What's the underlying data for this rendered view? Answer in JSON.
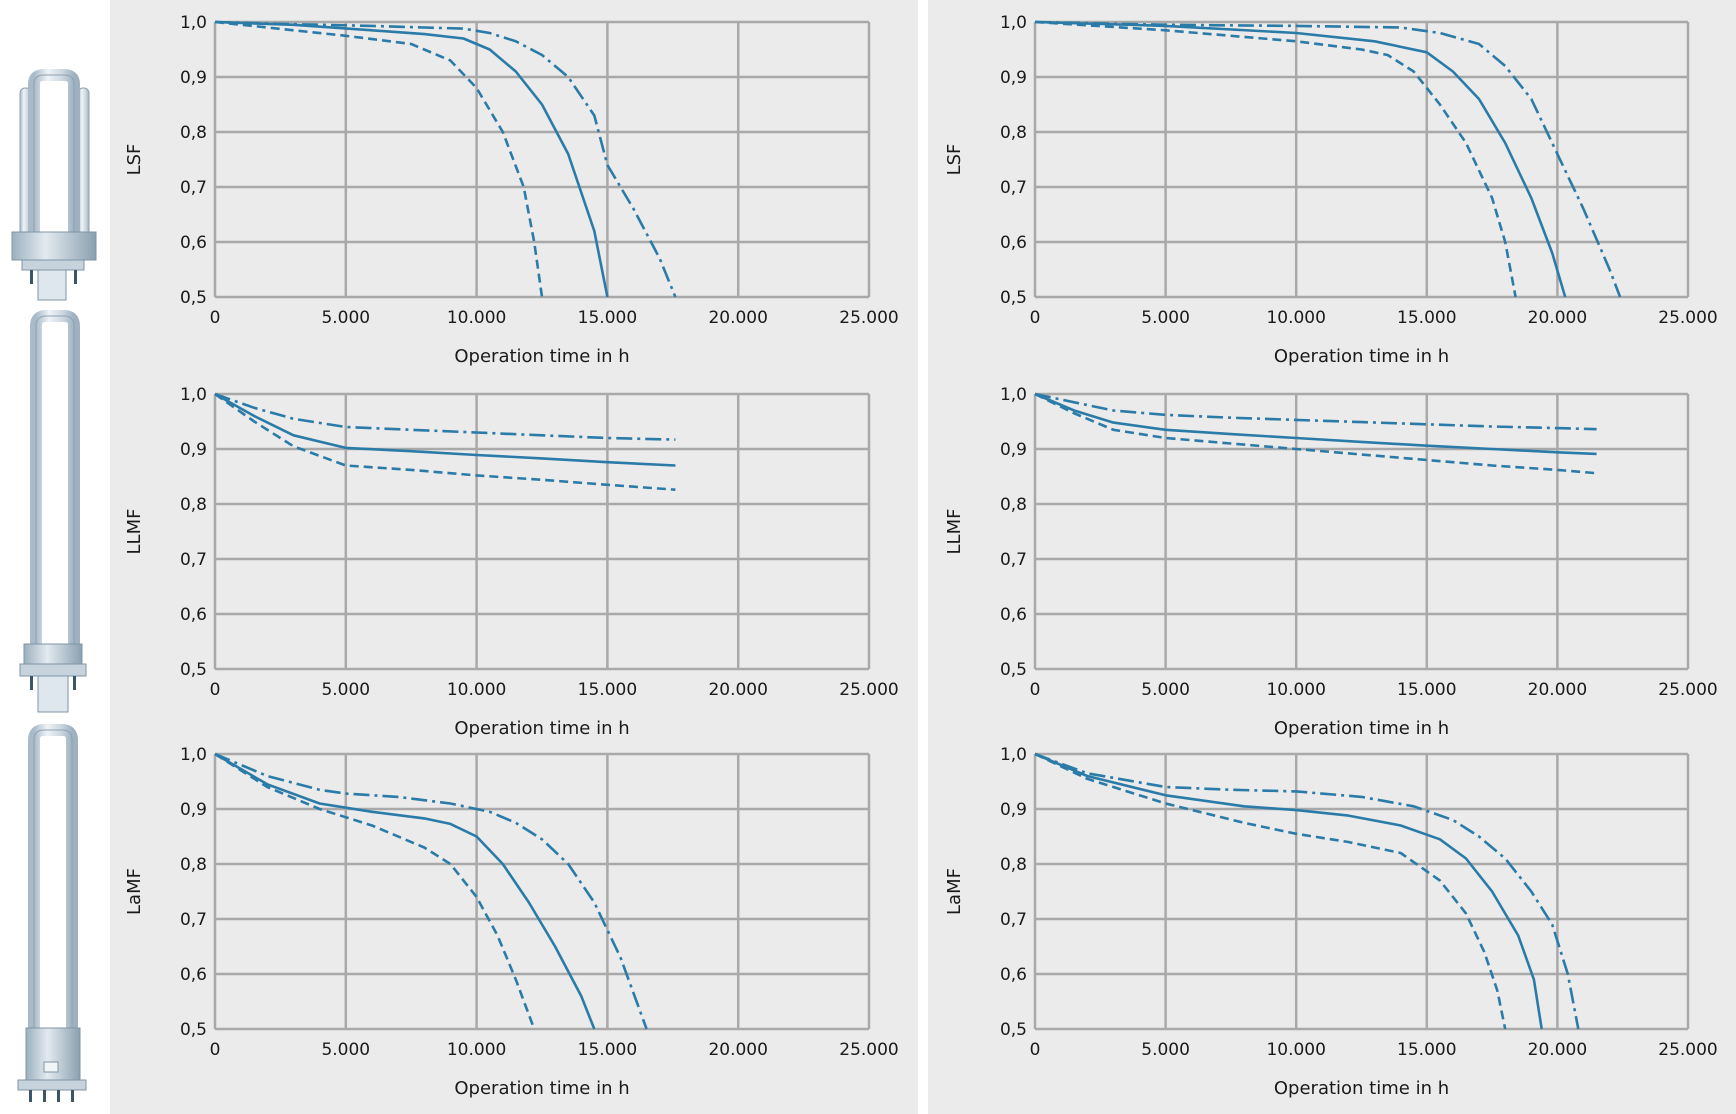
{
  "colors": {
    "panel_bg": "#ebebeb",
    "grid": "#a9a9a9",
    "curve": "#2b7ba8",
    "text": "#1a1a1a"
  },
  "lamp_icons": [
    "compact-fluorescent-quad-tube-icon",
    "compact-fluorescent-double-tube-4pin-icon",
    "compact-fluorescent-double-tube-icon"
  ],
  "chart_data": [
    {
      "id": "lsf-left",
      "type": "line",
      "xlabel": "Operation time in h",
      "ylabel": "LSF",
      "xlim": [
        0,
        25000
      ],
      "ylim": [
        0.5,
        1.0
      ],
      "grid": true,
      "xticks": [
        0,
        5000,
        10000,
        15000,
        20000,
        25000
      ],
      "xtick_labels": [
        "0",
        "5.000",
        "10.000",
        "15.000",
        "20.000",
        "25.000"
      ],
      "yticks": [
        0.5,
        0.6,
        0.7,
        0.8,
        0.9,
        1.0
      ],
      "ytick_labels": [
        "0,5",
        "0,6",
        "0,7",
        "0,8",
        "0,9",
        "1,0"
      ],
      "series": [
        {
          "style": "dashed",
          "x": [
            0,
            2000,
            5000,
            7500,
            9000,
            10000,
            11000,
            11800,
            12200,
            12500
          ],
          "y": [
            1.0,
            0.99,
            0.975,
            0.96,
            0.93,
            0.88,
            0.8,
            0.7,
            0.6,
            0.5
          ]
        },
        {
          "style": "solid",
          "x": [
            0,
            3000,
            6000,
            8000,
            9500,
            10500,
            11500,
            12500,
            13500,
            14500,
            15000
          ],
          "y": [
            1.0,
            0.995,
            0.985,
            0.978,
            0.97,
            0.95,
            0.91,
            0.85,
            0.76,
            0.62,
            0.5
          ]
        },
        {
          "style": "dashdot",
          "x": [
            0,
            3000,
            6000,
            8000,
            9500,
            10500,
            11500,
            12500,
            13500,
            14500,
            15000,
            16000,
            17000,
            17600
          ],
          "y": [
            1.0,
            0.996,
            0.993,
            0.99,
            0.988,
            0.98,
            0.965,
            0.94,
            0.9,
            0.83,
            0.74,
            0.66,
            0.57,
            0.5
          ]
        }
      ]
    },
    {
      "id": "lsf-right",
      "type": "line",
      "xlabel": "Operation time in h",
      "ylabel": "LSF",
      "xlim": [
        0,
        25000
      ],
      "ylim": [
        0.5,
        1.0
      ],
      "grid": true,
      "xticks": [
        0,
        5000,
        10000,
        15000,
        20000,
        25000
      ],
      "xtick_labels": [
        "0",
        "5.000",
        "10.000",
        "15.000",
        "20.000",
        "25.000"
      ],
      "yticks": [
        0.5,
        0.6,
        0.7,
        0.8,
        0.9,
        1.0
      ],
      "ytick_labels": [
        "0,5",
        "0,6",
        "0,7",
        "0,8",
        "0,9",
        "1,0"
      ],
      "series": [
        {
          "style": "dashed",
          "x": [
            0,
            5000,
            10000,
            12500,
            13500,
            14500,
            15500,
            16500,
            17500,
            18000,
            18400
          ],
          "y": [
            1.0,
            0.985,
            0.965,
            0.95,
            0.94,
            0.91,
            0.85,
            0.78,
            0.68,
            0.6,
            0.5
          ]
        },
        {
          "style": "solid",
          "x": [
            0,
            5000,
            10000,
            13000,
            15000,
            16000,
            17000,
            18000,
            19000,
            19800,
            20300
          ],
          "y": [
            1.0,
            0.993,
            0.98,
            0.965,
            0.945,
            0.91,
            0.86,
            0.78,
            0.68,
            0.58,
            0.5
          ]
        },
        {
          "style": "dashdot",
          "x": [
            0,
            5000,
            10000,
            14000,
            15500,
            17000,
            18000,
            19000,
            20000,
            21000,
            22000,
            22400
          ],
          "y": [
            1.0,
            0.995,
            0.993,
            0.99,
            0.98,
            0.96,
            0.92,
            0.86,
            0.76,
            0.66,
            0.55,
            0.5
          ]
        }
      ]
    },
    {
      "id": "llmf-left",
      "type": "line",
      "xlabel": "Operation time in h",
      "ylabel": "LLMF",
      "xlim": [
        0,
        25000
      ],
      "ylim": [
        0.5,
        1.0
      ],
      "grid": true,
      "xticks": [
        0,
        5000,
        10000,
        15000,
        20000,
        25000
      ],
      "xtick_labels": [
        "0",
        "5.000",
        "10.000",
        "15.000",
        "20.000",
        "25.000"
      ],
      "yticks": [
        0.5,
        0.6,
        0.7,
        0.8,
        0.9,
        1.0
      ],
      "ytick_labels": [
        "0,5",
        "0,6",
        "0,7",
        "0,8",
        "0,9",
        "1,0"
      ],
      "series": [
        {
          "style": "dashed",
          "x": [
            0,
            1500,
            3000,
            5000,
            7500,
            10000,
            12500,
            15000,
            17600
          ],
          "y": [
            1.0,
            0.95,
            0.905,
            0.87,
            0.862,
            0.852,
            0.844,
            0.835,
            0.826
          ]
        },
        {
          "style": "solid",
          "x": [
            0,
            1500,
            3000,
            5000,
            7500,
            10000,
            12500,
            15000,
            17600
          ],
          "y": [
            1.0,
            0.96,
            0.925,
            0.902,
            0.896,
            0.889,
            0.883,
            0.876,
            0.87
          ]
        },
        {
          "style": "dashdot",
          "x": [
            0,
            1500,
            3000,
            5000,
            7500,
            10000,
            12500,
            15000,
            17600
          ],
          "y": [
            1.0,
            0.975,
            0.955,
            0.94,
            0.935,
            0.93,
            0.925,
            0.92,
            0.917
          ]
        }
      ]
    },
    {
      "id": "llmf-right",
      "type": "line",
      "xlabel": "Operation time in h",
      "ylabel": "LLMF",
      "xlim": [
        0,
        25000
      ],
      "ylim": [
        0.5,
        1.0
      ],
      "grid": true,
      "xticks": [
        0,
        5000,
        10000,
        15000,
        20000,
        25000
      ],
      "xtick_labels": [
        "0",
        "5.000",
        "10.000",
        "15.000",
        "20.000",
        "25.000"
      ],
      "yticks": [
        0.5,
        0.6,
        0.7,
        0.8,
        0.9,
        1.0
      ],
      "ytick_labels": [
        "0,5",
        "0,6",
        "0,7",
        "0,8",
        "0,9",
        "1,0"
      ],
      "series": [
        {
          "style": "dashed",
          "x": [
            0,
            1500,
            3000,
            5000,
            7500,
            10000,
            12500,
            15000,
            17500,
            20000,
            21500
          ],
          "y": [
            1.0,
            0.965,
            0.935,
            0.92,
            0.91,
            0.9,
            0.89,
            0.88,
            0.87,
            0.862,
            0.856
          ]
        },
        {
          "style": "solid",
          "x": [
            0,
            1500,
            3000,
            5000,
            7500,
            10000,
            12500,
            15000,
            17500,
            20000,
            21500
          ],
          "y": [
            1.0,
            0.97,
            0.948,
            0.935,
            0.927,
            0.92,
            0.913,
            0.906,
            0.9,
            0.894,
            0.891
          ]
        },
        {
          "style": "dashdot",
          "x": [
            0,
            1500,
            3000,
            5000,
            7500,
            10000,
            12500,
            15000,
            17500,
            20000,
            21500
          ],
          "y": [
            1.0,
            0.985,
            0.97,
            0.962,
            0.957,
            0.953,
            0.949,
            0.945,
            0.941,
            0.938,
            0.936
          ]
        }
      ]
    },
    {
      "id": "lamf-left",
      "type": "line",
      "xlabel": "Operation time in h",
      "ylabel": "LaMF",
      "xlim": [
        0,
        25000
      ],
      "ylim": [
        0.5,
        1.0
      ],
      "grid": true,
      "xticks": [
        0,
        5000,
        10000,
        15000,
        20000,
        25000
      ],
      "xtick_labels": [
        "0",
        "5.000",
        "10.000",
        "15.000",
        "20.000",
        "25.000"
      ],
      "yticks": [
        0.5,
        0.6,
        0.7,
        0.8,
        0.9,
        1.0
      ],
      "ytick_labels": [
        "0,5",
        "0,6",
        "0,7",
        "0,8",
        "0,9",
        "1,0"
      ],
      "series": [
        {
          "style": "dashed",
          "x": [
            0,
            2000,
            4000,
            6000,
            8000,
            9000,
            10000,
            10800,
            11500,
            12200
          ],
          "y": [
            1.0,
            0.94,
            0.9,
            0.87,
            0.83,
            0.8,
            0.74,
            0.67,
            0.59,
            0.5
          ]
        },
        {
          "style": "solid",
          "x": [
            0,
            2000,
            4000,
            6000,
            8000,
            9000,
            10000,
            11000,
            12000,
            13000,
            14000,
            14500
          ],
          "y": [
            1.0,
            0.945,
            0.91,
            0.895,
            0.883,
            0.873,
            0.85,
            0.8,
            0.73,
            0.65,
            0.56,
            0.5
          ]
        },
        {
          "style": "dashdot",
          "x": [
            0,
            2000,
            4000,
            5000,
            7000,
            9000,
            10500,
            11500,
            12500,
            13500,
            14500,
            15500,
            16500
          ],
          "y": [
            1.0,
            0.96,
            0.935,
            0.928,
            0.922,
            0.91,
            0.895,
            0.875,
            0.845,
            0.8,
            0.73,
            0.63,
            0.5
          ]
        }
      ]
    },
    {
      "id": "lamf-right",
      "type": "line",
      "xlabel": "Operation time in h",
      "ylabel": "LaMF",
      "xlim": [
        0,
        25000
      ],
      "ylim": [
        0.5,
        1.0
      ],
      "grid": true,
      "xticks": [
        0,
        5000,
        10000,
        15000,
        20000,
        25000
      ],
      "xtick_labels": [
        "0",
        "5.000",
        "10.000",
        "15.000",
        "20.000",
        "25.000"
      ],
      "yticks": [
        0.5,
        0.6,
        0.7,
        0.8,
        0.9,
        1.0
      ],
      "ytick_labels": [
        "0,5",
        "0,6",
        "0,7",
        "0,8",
        "0,9",
        "1,0"
      ],
      "series": [
        {
          "style": "dashed",
          "x": [
            0,
            2000,
            5000,
            8000,
            10000,
            12000,
            14000,
            15500,
            16500,
            17200,
            17700,
            18000
          ],
          "y": [
            1.0,
            0.955,
            0.91,
            0.875,
            0.855,
            0.84,
            0.82,
            0.77,
            0.71,
            0.64,
            0.57,
            0.5
          ]
        },
        {
          "style": "solid",
          "x": [
            0,
            2000,
            5000,
            8000,
            10000,
            12000,
            14000,
            15500,
            16500,
            17500,
            18500,
            19100,
            19400
          ],
          "y": [
            1.0,
            0.96,
            0.925,
            0.905,
            0.898,
            0.888,
            0.87,
            0.845,
            0.81,
            0.75,
            0.67,
            0.59,
            0.5
          ]
        },
        {
          "style": "dashdot",
          "x": [
            0,
            2000,
            5000,
            7500,
            10000,
            12500,
            14500,
            16000,
            17000,
            18000,
            19000,
            19800,
            20400,
            20800
          ],
          "y": [
            1.0,
            0.965,
            0.94,
            0.935,
            0.932,
            0.922,
            0.905,
            0.88,
            0.85,
            0.81,
            0.75,
            0.69,
            0.6,
            0.5
          ]
        }
      ]
    }
  ]
}
